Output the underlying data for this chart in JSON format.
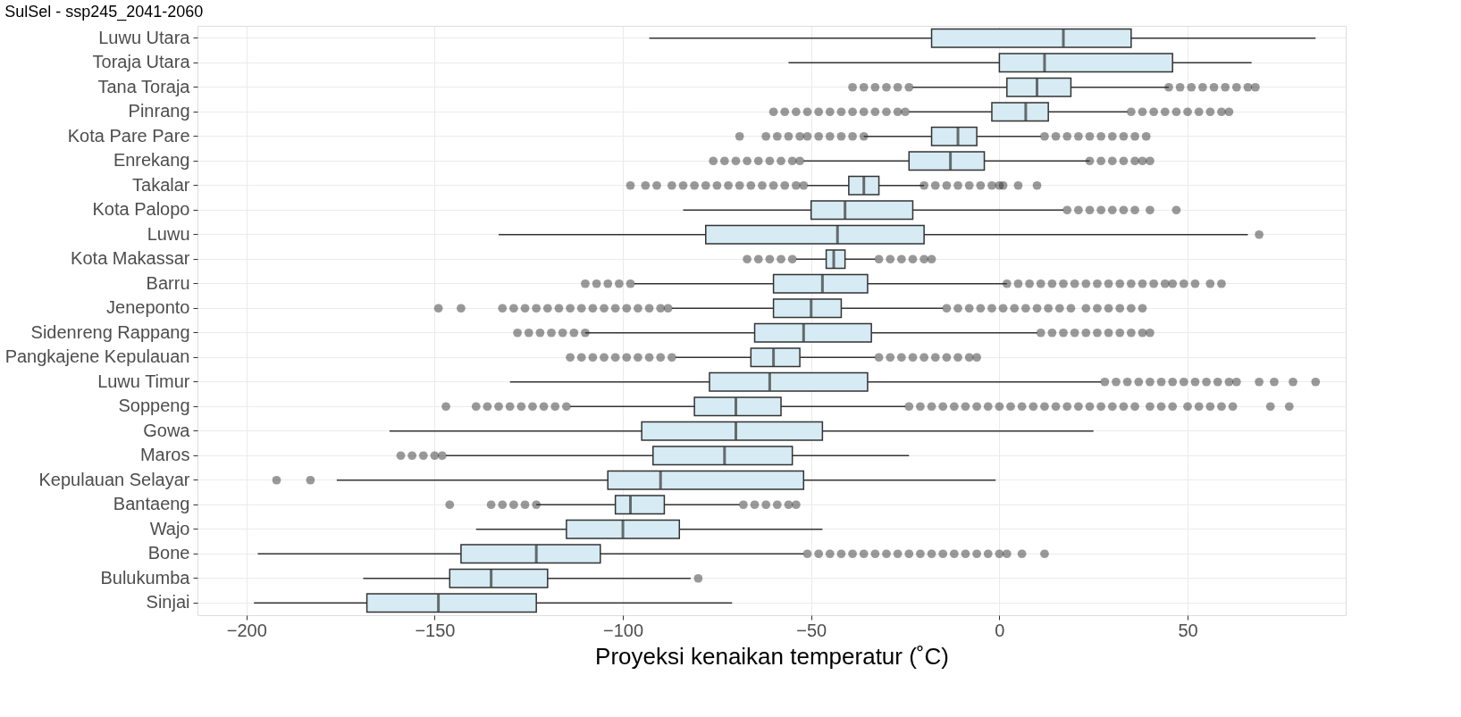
{
  "chart_data": {
    "type": "box",
    "orientation": "horizontal",
    "title": "SulSel - ssp245_2041-2060",
    "xlabel": "Proyeksi kenaikan temperatur (˚C)",
    "categories": [
      "Luwu Utara",
      "Toraja Utara",
      "Tana Toraja",
      "Pinrang",
      "Kota Pare Pare",
      "Enrekang",
      "Takalar",
      "Kota Palopo",
      "Luwu",
      "Kota Makassar",
      "Barru",
      "Jeneponto",
      "Sidenreng Rappang",
      "Pangkajene Kepulauan",
      "Luwu Timur",
      "Soppeng",
      "Gowa",
      "Maros",
      "Kepulauan Selayar",
      "Bantaeng",
      "Wajo",
      "Bone",
      "Bulukumba",
      "Sinjai"
    ],
    "xlim": [
      -213,
      92
    ],
    "xticks": [
      -200,
      -150,
      -100,
      -50,
      0,
      50
    ],
    "grid": true,
    "series": [
      {
        "color": "#d6ebf3",
        "boxes": [
          {
            "low": -93,
            "q1": -18,
            "median": 17,
            "q3": 35,
            "high": 84
          },
          {
            "low": -56,
            "q1": 0,
            "median": 12,
            "q3": 46,
            "high": 67
          },
          {
            "low": -23,
            "q1": 2,
            "median": 10,
            "q3": 19,
            "high": 45,
            "outliers": [
              -39,
              -36,
              -33,
              -30,
              -27,
              -24,
              45,
              48,
              51,
              54,
              57,
              60,
              63,
              66,
              68
            ]
          },
          {
            "low": -24,
            "q1": -2,
            "median": 7,
            "q3": 13,
            "high": 34,
            "outliers": [
              -60,
              -57,
              -54,
              -51,
              -48,
              -45,
              -42,
              -39,
              -36,
              -33,
              -30,
              -27,
              -25,
              35,
              38,
              41,
              44,
              47,
              50,
              53,
              56,
              59,
              61
            ]
          },
          {
            "low": -36,
            "q1": -18,
            "median": -11,
            "q3": -6,
            "high": 11,
            "outliers": [
              -69,
              -62,
              -59,
              -56,
              -53,
              -51,
              -48,
              -45,
              -42,
              -39,
              -36,
              12,
              15,
              18,
              21,
              24,
              27,
              30,
              33,
              36,
              39
            ]
          },
          {
            "low": -52,
            "q1": -24,
            "median": -13,
            "q3": -4,
            "high": 24,
            "outliers": [
              -76,
              -73,
              -70,
              -67,
              -64,
              -61,
              -58,
              -55,
              -53,
              24,
              27,
              30,
              33,
              36,
              38,
              40
            ]
          },
          {
            "low": -51,
            "q1": -40,
            "median": -36,
            "q3": -32,
            "high": -20,
            "outliers": [
              -98,
              -94,
              -91,
              -87,
              -84,
              -81,
              -78,
              -75,
              -72,
              -69,
              -66,
              -63,
              -60,
              -57,
              -54,
              -52,
              -20,
              -17,
              -14,
              -11,
              -8,
              -5,
              -2,
              0,
              1,
              5,
              10
            ]
          },
          {
            "low": -84,
            "q1": -50,
            "median": -41,
            "q3": -23,
            "high": 17,
            "outliers": [
              18,
              21,
              24,
              27,
              30,
              33,
              36,
              40,
              47
            ]
          },
          {
            "low": -133,
            "q1": -78,
            "median": -43,
            "q3": -20,
            "high": 66,
            "outliers": [
              69
            ]
          },
          {
            "low": -54,
            "q1": -46,
            "median": -44,
            "q3": -41,
            "high": -33,
            "outliers": [
              -67,
              -64,
              -61,
              -58,
              -55,
              -32,
              -29,
              -26,
              -23,
              -20,
              -18
            ]
          },
          {
            "low": -97,
            "q1": -60,
            "median": -47,
            "q3": -35,
            "high": 2,
            "outliers": [
              -110,
              -107,
              -104,
              -101,
              -98,
              2,
              5,
              8,
              11,
              14,
              17,
              20,
              23,
              26,
              29,
              32,
              35,
              38,
              41,
              44,
              46,
              49,
              52,
              56,
              59
            ]
          },
          {
            "low": -87,
            "q1": -60,
            "median": -50,
            "q3": -42,
            "high": -15,
            "outliers": [
              -149,
              -143,
              -132,
              -129,
              -126,
              -123,
              -120,
              -117,
              -114,
              -111,
              -108,
              -105,
              -102,
              -99,
              -96,
              -93,
              -90,
              -88,
              -14,
              -11,
              -8,
              -5,
              -2,
              1,
              4,
              7,
              10,
              13,
              16,
              19,
              23,
              26,
              29,
              32,
              35,
              38
            ]
          },
          {
            "low": -110,
            "q1": -65,
            "median": -52,
            "q3": -34,
            "high": 10,
            "outliers": [
              -128,
              -125,
              -122,
              -119,
              -116,
              -113,
              -110,
              11,
              14,
              17,
              20,
              23,
              26,
              29,
              32,
              35,
              38,
              40
            ]
          },
          {
            "low": -86,
            "q1": -66,
            "median": -60,
            "q3": -53,
            "high": -33,
            "outliers": [
              -114,
              -111,
              -108,
              -105,
              -102,
              -99,
              -96,
              -93,
              -90,
              -87,
              -32,
              -29,
              -26,
              -23,
              -20,
              -17,
              -14,
              -11,
              -8,
              -6
            ]
          },
          {
            "low": -130,
            "q1": -77,
            "median": -61,
            "q3": -35,
            "high": 27,
            "outliers": [
              28,
              31,
              34,
              37,
              40,
              43,
              46,
              49,
              52,
              55,
              58,
              61,
              63,
              69,
              73,
              78,
              84
            ]
          },
          {
            "low": -114,
            "q1": -81,
            "median": -70,
            "q3": -58,
            "high": -25,
            "outliers": [
              -147,
              -139,
              -136,
              -133,
              -130,
              -127,
              -124,
              -121,
              -118,
              -115,
              -24,
              -21,
              -18,
              -15,
              -12,
              -9,
              -6,
              -3,
              0,
              3,
              6,
              9,
              12,
              15,
              18,
              21,
              24,
              27,
              30,
              33,
              36,
              40,
              43,
              46,
              50,
              53,
              56,
              59,
              62,
              72,
              77
            ]
          },
          {
            "low": -162,
            "q1": -95,
            "median": -70,
            "q3": -47,
            "high": 25
          },
          {
            "low": -147,
            "q1": -92,
            "median": -73,
            "q3": -55,
            "high": -24,
            "outliers": [
              -159,
              -156,
              -153,
              -150,
              -148
            ]
          },
          {
            "low": -176,
            "q1": -104,
            "median": -90,
            "q3": -52,
            "high": -1,
            "outliers": [
              -192,
              -183
            ]
          },
          {
            "low": -123,
            "q1": -102,
            "median": -98,
            "q3": -89,
            "high": -69,
            "outliers": [
              -146,
              -135,
              -132,
              -129,
              -126,
              -123,
              -68,
              -65,
              -62,
              -59,
              -56,
              -54
            ]
          },
          {
            "low": -139,
            "q1": -115,
            "median": -100,
            "q3": -85,
            "high": -47
          },
          {
            "low": -197,
            "q1": -143,
            "median": -123,
            "q3": -106,
            "high": -52,
            "outliers": [
              -51,
              -48,
              -45,
              -42,
              -39,
              -36,
              -33,
              -30,
              -27,
              -24,
              -21,
              -18,
              -15,
              -12,
              -9,
              -6,
              -3,
              0,
              2,
              6,
              12
            ]
          },
          {
            "low": -169,
            "q1": -146,
            "median": -135,
            "q3": -120,
            "high": -82,
            "outliers": [
              -80
            ]
          },
          {
            "low": -198,
            "q1": -168,
            "median": -149,
            "q3": -123,
            "high": -71
          }
        ]
      }
    ]
  }
}
